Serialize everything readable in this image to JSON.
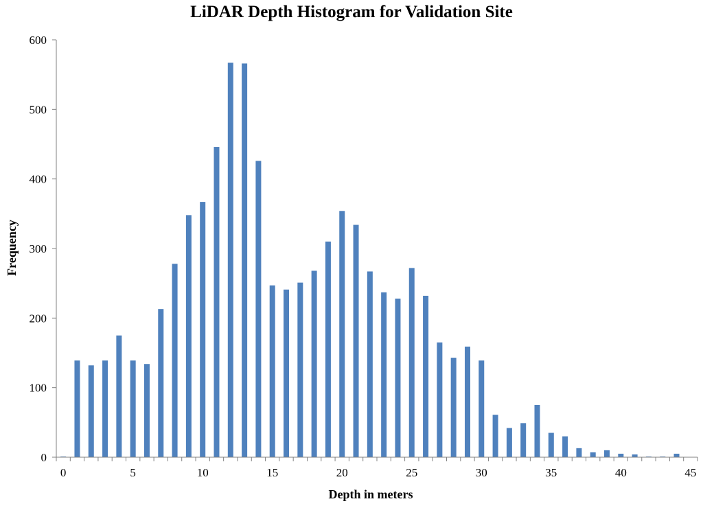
{
  "chart_data": {
    "type": "bar",
    "title": "LiDAR Depth Histogram for Validation Site",
    "xlabel": "Depth in meters",
    "ylabel": "Frequency",
    "ylim": [
      0,
      600
    ],
    "xlim": [
      0,
      46
    ],
    "yticks": [
      0,
      100,
      200,
      300,
      400,
      500,
      600
    ],
    "xticks": [
      0,
      5,
      10,
      15,
      20,
      25,
      30,
      35,
      40,
      45
    ],
    "bar_color": "#4f81bd",
    "grid": false,
    "legend": "none",
    "x": [
      0,
      1,
      2,
      3,
      4,
      5,
      6,
      7,
      8,
      9,
      10,
      11,
      12,
      13,
      14,
      15,
      16,
      17,
      18,
      19,
      20,
      21,
      22,
      23,
      24,
      25,
      26,
      27,
      28,
      29,
      30,
      31,
      32,
      33,
      34,
      35,
      36,
      37,
      38,
      39,
      40,
      41,
      42,
      43,
      44,
      45
    ],
    "values": [
      1,
      139,
      132,
      139,
      175,
      139,
      134,
      213,
      278,
      348,
      367,
      446,
      567,
      566,
      426,
      247,
      241,
      251,
      268,
      310,
      354,
      334,
      267,
      237,
      228,
      272,
      232,
      165,
      143,
      159,
      139,
      61,
      42,
      49,
      75,
      35,
      30,
      13,
      7,
      10,
      5,
      4,
      1,
      1,
      5,
      0
    ]
  }
}
